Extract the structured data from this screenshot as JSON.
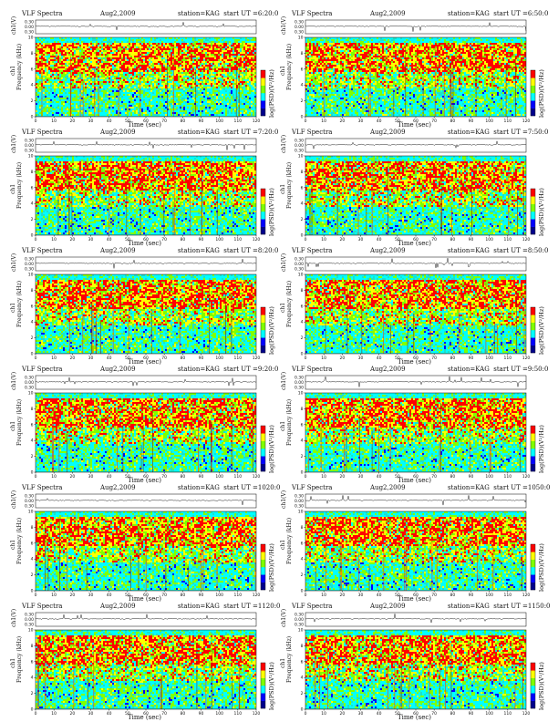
{
  "page": {
    "background": "#ffffff"
  },
  "panel_template": {
    "title": "VLF Spectra",
    "date": "Aug2,2009",
    "station": "station=KAG",
    "ch_ylabel": "ch1(V)",
    "spec_ylabel": "Frequency (kHz)",
    "spec_ylabel_prefix": "ch1",
    "xlabel": "Time (sec)",
    "colorbar_label": "log(PSD)(V²/Hz)",
    "ch_ticks": [
      "0.30",
      "0.00",
      "0.30"
    ],
    "freq_ticks": [
      "0",
      "2",
      "4",
      "6",
      "8",
      "10"
    ],
    "time_ticks": [
      "0",
      "10",
      "20",
      "30",
      "40",
      "50",
      "60",
      "70",
      "80",
      "90",
      "100",
      "110",
      "120"
    ]
  },
  "chart_data": [
    {
      "type": "heatmap",
      "start_label": "start UT =6:20:0",
      "xlim": [
        0,
        120
      ],
      "ylim": [
        0,
        10
      ],
      "ch_ylim": [
        -0.3,
        0.3
      ],
      "colormap": [
        "#00008b",
        "#0000ff",
        "#00ffff",
        "#7fff00",
        "#ffff00",
        "#ff0000"
      ],
      "seed": 11
    },
    {
      "type": "heatmap",
      "start_label": "start UT =6:50:0",
      "xlim": [
        0,
        120
      ],
      "ylim": [
        0,
        10
      ],
      "ch_ylim": [
        -0.3,
        0.3
      ],
      "colormap": [
        "#00008b",
        "#0000ff",
        "#00ffff",
        "#7fff00",
        "#ffff00",
        "#ff0000"
      ],
      "seed": 23
    },
    {
      "type": "heatmap",
      "start_label": "start UT =7:20:0",
      "xlim": [
        0,
        120
      ],
      "ylim": [
        0,
        10
      ],
      "ch_ylim": [
        -0.3,
        0.3
      ],
      "colormap": [
        "#00008b",
        "#0000ff",
        "#00ffff",
        "#7fff00",
        "#ffff00",
        "#ff0000"
      ],
      "seed": 37
    },
    {
      "type": "heatmap",
      "start_label": "start UT =7:50:0",
      "xlim": [
        0,
        120
      ],
      "ylim": [
        0,
        10
      ],
      "ch_ylim": [
        -0.3,
        0.3
      ],
      "colormap": [
        "#00008b",
        "#0000ff",
        "#00ffff",
        "#7fff00",
        "#ffff00",
        "#ff0000"
      ],
      "seed": 41
    },
    {
      "type": "heatmap",
      "start_label": "start UT =8:20:0",
      "xlim": [
        0,
        120
      ],
      "ylim": [
        0,
        10
      ],
      "ch_ylim": [
        -0.3,
        0.3
      ],
      "colormap": [
        "#00008b",
        "#0000ff",
        "#00ffff",
        "#7fff00",
        "#ffff00",
        "#ff0000"
      ],
      "seed": 53
    },
    {
      "type": "heatmap",
      "start_label": "start UT =8:50:0",
      "xlim": [
        0,
        120
      ],
      "ylim": [
        0,
        10
      ],
      "ch_ylim": [
        -0.3,
        0.3
      ],
      "colormap": [
        "#00008b",
        "#0000ff",
        "#00ffff",
        "#7fff00",
        "#ffff00",
        "#ff0000"
      ],
      "seed": 67
    },
    {
      "type": "heatmap",
      "start_label": "start UT =9:20:0",
      "xlim": [
        0,
        120
      ],
      "ylim": [
        0,
        10
      ],
      "ch_ylim": [
        -0.3,
        0.3
      ],
      "colormap": [
        "#00008b",
        "#0000ff",
        "#00ffff",
        "#7fff00",
        "#ffff00",
        "#ff0000"
      ],
      "seed": 71
    },
    {
      "type": "heatmap",
      "start_label": "start UT =9:50:0",
      "xlim": [
        0,
        120
      ],
      "ylim": [
        0,
        10
      ],
      "ch_ylim": [
        -0.3,
        0.3
      ],
      "colormap": [
        "#00008b",
        "#0000ff",
        "#00ffff",
        "#7fff00",
        "#ffff00",
        "#ff0000"
      ],
      "seed": 83
    },
    {
      "type": "heatmap",
      "start_label": "start UT =1020:0",
      "xlim": [
        0,
        120
      ],
      "ylim": [
        0,
        10
      ],
      "ch_ylim": [
        -0.3,
        0.3
      ],
      "colormap": [
        "#00008b",
        "#0000ff",
        "#00ffff",
        "#7fff00",
        "#ffff00",
        "#ff0000"
      ],
      "seed": 97
    },
    {
      "type": "heatmap",
      "start_label": "start UT =1050:0",
      "xlim": [
        0,
        120
      ],
      "ylim": [
        0,
        10
      ],
      "ch_ylim": [
        -0.3,
        0.3
      ],
      "colormap": [
        "#00008b",
        "#0000ff",
        "#00ffff",
        "#7fff00",
        "#ffff00",
        "#ff0000"
      ],
      "seed": 101
    },
    {
      "type": "heatmap",
      "start_label": "start UT =1120:0",
      "xlim": [
        0,
        120
      ],
      "ylim": [
        0,
        10
      ],
      "ch_ylim": [
        -0.3,
        0.3
      ],
      "colormap": [
        "#00008b",
        "#0000ff",
        "#00ffff",
        "#7fff00",
        "#ffff00",
        "#ff0000"
      ],
      "seed": 113
    },
    {
      "type": "heatmap",
      "start_label": "start UT =1150:0",
      "xlim": [
        0,
        120
      ],
      "ylim": [
        0,
        10
      ],
      "ch_ylim": [
        -0.3,
        0.3
      ],
      "colormap": [
        "#00008b",
        "#0000ff",
        "#00ffff",
        "#7fff00",
        "#ffff00",
        "#ff0000"
      ],
      "seed": 127
    }
  ]
}
